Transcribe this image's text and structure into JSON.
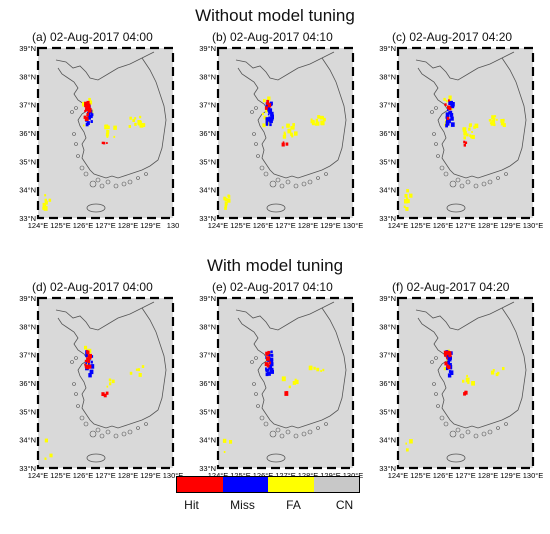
{
  "titles": {
    "top": "Without model tuning",
    "bottom": "With model tuning"
  },
  "axes": {
    "lat_labels": [
      "39°N",
      "38°N",
      "37°N",
      "36°N",
      "35°N",
      "34°N",
      "33°N"
    ],
    "lon_labels": [
      "124°E",
      "125°E",
      "126°E",
      "127°E",
      "128°E",
      "129°E",
      "130°E"
    ],
    "lon_labels_alt": [
      "124°E",
      "125°E",
      "126°E",
      "127°E",
      "128°E",
      "129°E",
      "130"
    ]
  },
  "panels": [
    {
      "id": "a",
      "label": "(a) 02-Aug-2017 04:00",
      "tuning": false,
      "hits": "many",
      "miss": "medium",
      "fa": "medium"
    },
    {
      "id": "b",
      "label": "(b) 02-Aug-2017 04:10",
      "tuning": false,
      "hits": "few",
      "miss": "many",
      "fa": "many"
    },
    {
      "id": "c",
      "label": "(c) 02-Aug-2017 04:20",
      "tuning": false,
      "hits": "few",
      "miss": "many",
      "fa": "many"
    },
    {
      "id": "d",
      "label": "(d) 02-Aug-2017 04:00",
      "tuning": true,
      "hits": "many",
      "miss": "medium",
      "fa": "few"
    },
    {
      "id": "e",
      "label": "(e) 02-Aug-2017 04:10",
      "tuning": true,
      "hits": "medium",
      "miss": "many",
      "fa": "few"
    },
    {
      "id": "f",
      "label": "(f) 02-Aug-2017 04:20",
      "tuning": true,
      "hits": "medium",
      "miss": "many",
      "fa": "few"
    }
  ],
  "legend": {
    "items": [
      {
        "label": "Hit",
        "color": "#ff0000"
      },
      {
        "label": "Miss",
        "color": "#0000ff"
      },
      {
        "label": "FA",
        "color": "#ffff00"
      },
      {
        "label": "CN",
        "color": "#c8c8c8"
      }
    ]
  },
  "colors": {
    "background": "#d9d9d9",
    "coast": "#555555",
    "hit": "#ff0000",
    "miss": "#0000ff",
    "fa": "#ffff00"
  }
}
